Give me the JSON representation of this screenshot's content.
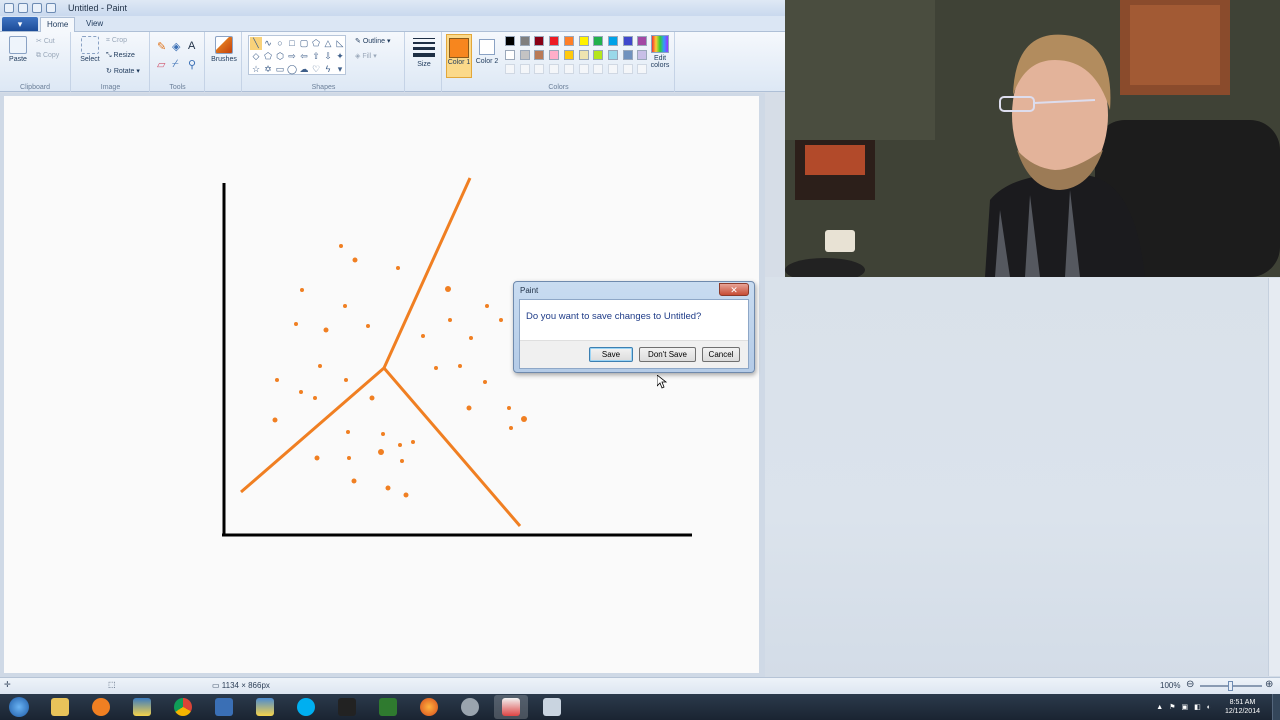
{
  "app": {
    "title": "Untitled - Paint"
  },
  "tabs": {
    "file": "",
    "home": "Home",
    "view": "View"
  },
  "ribbon": {
    "clipboard": {
      "label": "Clipboard",
      "paste": "Paste",
      "cut": "Cut",
      "copy": "Copy"
    },
    "image": {
      "label": "Image",
      "select": "Select",
      "crop": "Crop",
      "resize": "Resize",
      "rotate": "Rotate"
    },
    "tools": {
      "label": "Tools"
    },
    "brushes": "Brushes",
    "shapes": {
      "label": "Shapes",
      "outline": "Outline",
      "fill": "Fill"
    },
    "size": "Size",
    "color1": "Color 1",
    "color2": "Color 2",
    "colors_label": "Colors",
    "edit_colors": "Edit colors",
    "color1_value": "#f7861e",
    "color2_value": "#ffffff",
    "palette_row1": [
      "#000000",
      "#7f7f7f",
      "#880015",
      "#ed1c24",
      "#ff7f27",
      "#fff200",
      "#22b14c",
      "#00a2e8",
      "#3f48cc",
      "#a349a4"
    ],
    "palette_row2": [
      "#ffffff",
      "#c3c3c3",
      "#b97a57",
      "#ffaec9",
      "#ffc90e",
      "#efe4b0",
      "#b5e61d",
      "#99d9ea",
      "#7092be",
      "#c8bfe7"
    ]
  },
  "dialog": {
    "title": "Paint",
    "message": "Do you want to save changes to Untitled?",
    "save": "Save",
    "dont_save": "Don't Save",
    "cancel": "Cancel"
  },
  "status": {
    "dimensions": "1134 × 866px",
    "zoom": "100%"
  },
  "clock": {
    "time": "8:51 AM",
    "date": "12/12/2014"
  }
}
